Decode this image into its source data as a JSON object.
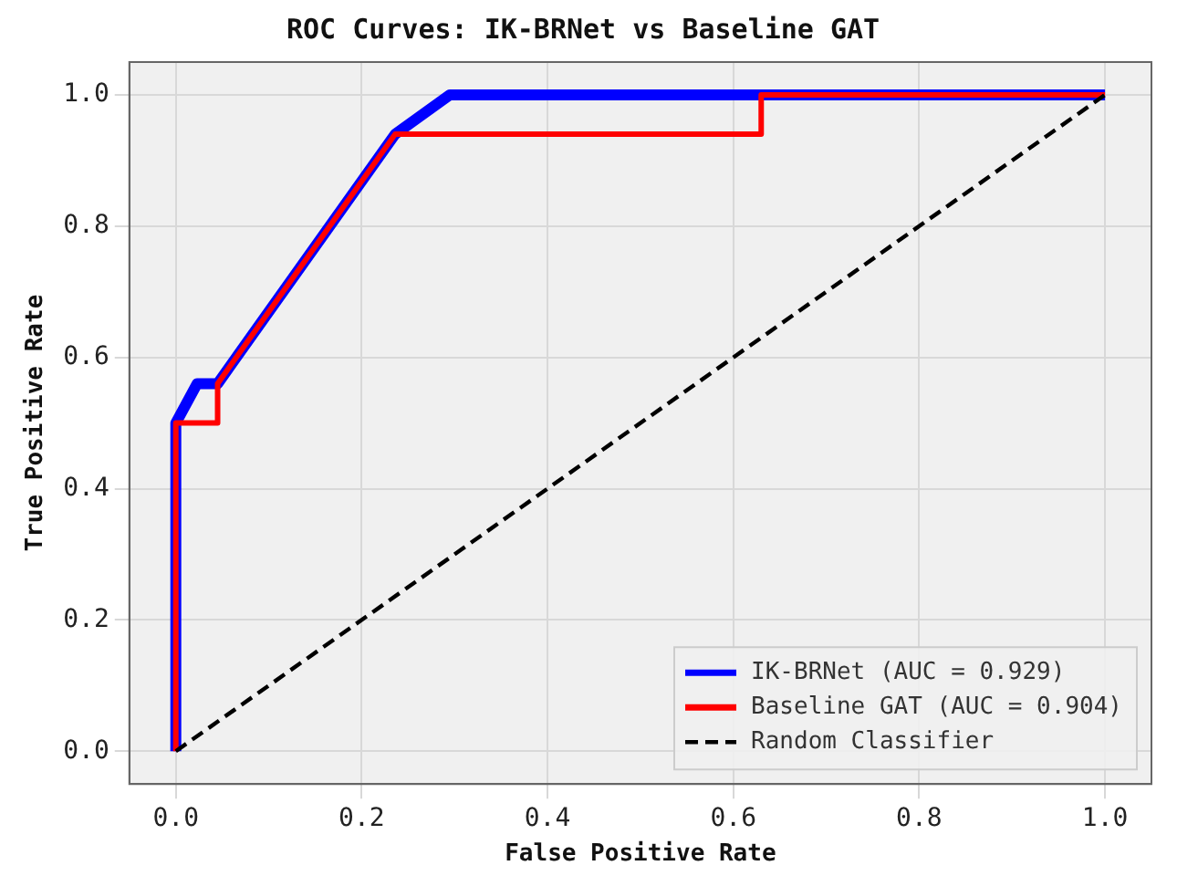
{
  "chart_data": {
    "type": "line",
    "title": "ROC Curves: IK-BRNet vs Baseline GAT",
    "xlabel": "False Positive Rate",
    "ylabel": "True Positive Rate",
    "xlim": [
      -0.05,
      1.05
    ],
    "ylim": [
      -0.05,
      1.05
    ],
    "xticks": [
      {
        "value": 0,
        "label": "0.0"
      },
      {
        "value": 0.2,
        "label": "0.2"
      },
      {
        "value": 0.4,
        "label": "0.4"
      },
      {
        "value": 0.6,
        "label": "0.6"
      },
      {
        "value": 0.8,
        "label": "0.8"
      },
      {
        "value": 1,
        "label": "1.0"
      }
    ],
    "yticks": [
      {
        "value": 0,
        "label": "0.0"
      },
      {
        "value": 0.2,
        "label": "0.2"
      },
      {
        "value": 0.4,
        "label": "0.4"
      },
      {
        "value": 0.6,
        "label": "0.6"
      },
      {
        "value": 0.8,
        "label": "0.8"
      },
      {
        "value": 1,
        "label": "1.0"
      }
    ],
    "grid": true,
    "legend": "bottom right",
    "marker": "none",
    "series": [
      {
        "name": "IK-BRNet (AUC = 0.929)",
        "color": "#0000ff",
        "x": [
          0,
          0,
          0.023,
          0.045,
          0.236,
          0.295,
          1
        ],
        "values": [
          0,
          0.5,
          0.56,
          0.56,
          0.94,
          1,
          1
        ]
      },
      {
        "name": "Baseline GAT (AUC = 0.904)",
        "color": "#ff0000",
        "x": [
          0,
          0,
          0.045,
          0.045,
          0.236,
          0.63,
          0.63,
          1
        ],
        "values": [
          0,
          0.5,
          0.5,
          0.56,
          0.94,
          0.94,
          1,
          1
        ]
      },
      {
        "name": "Random Classifier",
        "color": "#000000",
        "line_style": "dashed",
        "x": [
          0,
          1
        ],
        "values": [
          0,
          1
        ]
      }
    ]
  }
}
